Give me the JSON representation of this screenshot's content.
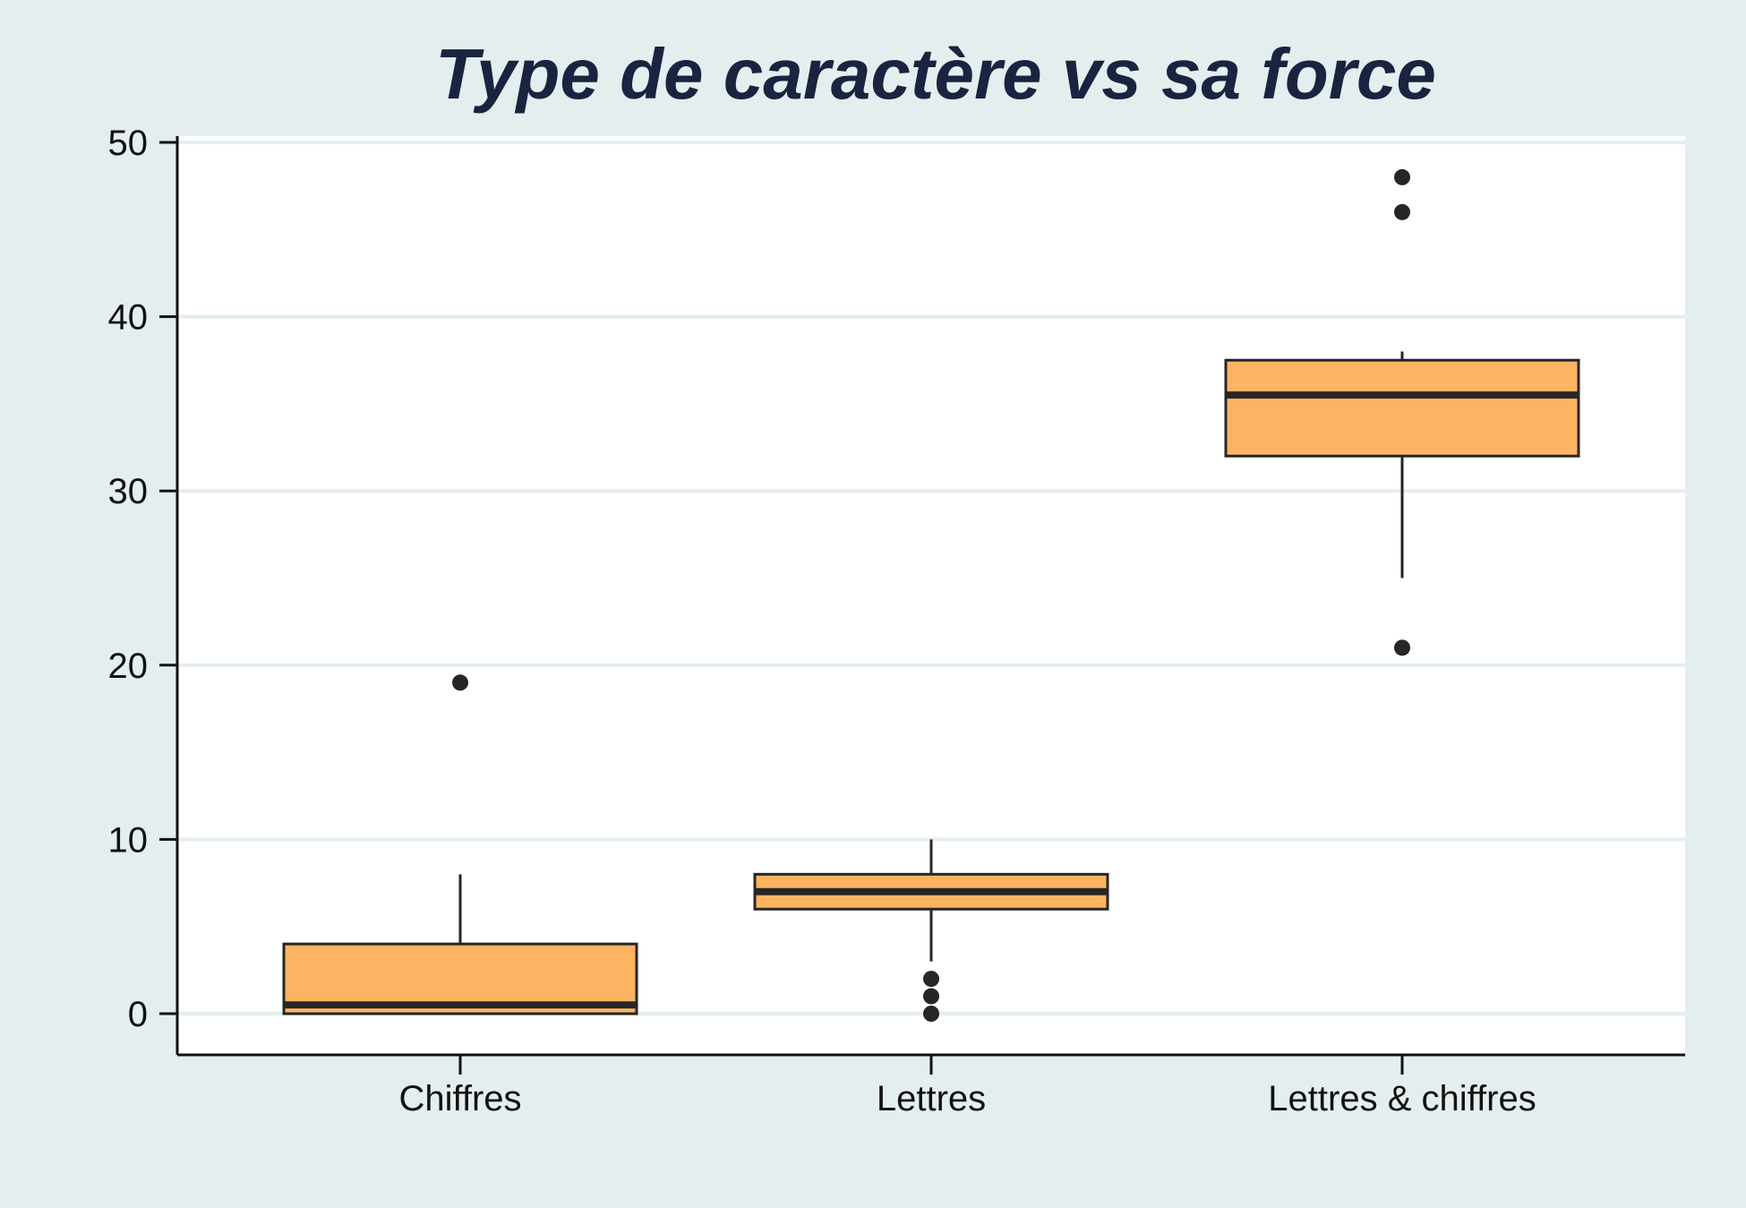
{
  "chart_data": {
    "type": "boxplot",
    "title": "Type de caractère vs sa force",
    "xlabel": "",
    "ylabel": "",
    "categories": [
      "Chiffres",
      "Lettres",
      "Lettres & chiffres"
    ],
    "ylim": [
      -12,
      51
    ],
    "yticks": [
      0,
      10,
      20,
      30,
      40,
      50
    ],
    "grid": true,
    "boxes": [
      {
        "category": "Chiffres",
        "whisker_low": 0,
        "q1": 0,
        "median": 0.5,
        "q3": 4,
        "whisker_high": 8,
        "outliers": [
          19
        ]
      },
      {
        "category": "Lettres",
        "whisker_low": 3,
        "q1": 6,
        "median": 7,
        "q3": 8,
        "whisker_high": 10,
        "outliers": [
          2,
          1,
          0
        ]
      },
      {
        "category": "Lettres & chiffres",
        "whisker_low": 25,
        "q1": 32,
        "median": 35.5,
        "q3": 37.5,
        "whisker_high": 38,
        "outliers": [
          21,
          46,
          48
        ]
      }
    ],
    "colors": {
      "background": "#e4eeee",
      "plot_background": "#ffffff",
      "box_fill": "#fdb462",
      "box_edge": "#262626",
      "grid": "#e4eeee",
      "title": "#1a2340"
    }
  }
}
